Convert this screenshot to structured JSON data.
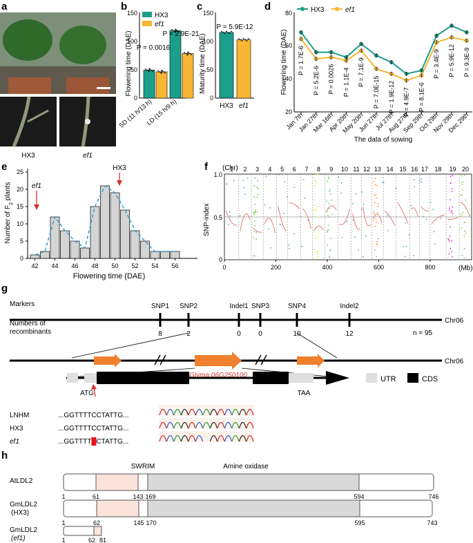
{
  "panel_labels": [
    "a",
    "b",
    "c",
    "d",
    "e",
    "f",
    "g",
    "h"
  ],
  "a": {
    "genotypes": [
      "HX3",
      "ef1"
    ]
  },
  "b": {
    "ylabel": "Flowering time (DAE)",
    "legend": [
      "HX3",
      "ef1"
    ],
    "categories": [
      "SD (11 h/13 h)",
      "LD (15 h/9 h)"
    ],
    "pvalues": [
      "P = 0.0016",
      "P = 2.9E-21"
    ],
    "yticks": [
      "0",
      "50",
      "100",
      "150"
    ]
  },
  "c": {
    "ylabel": "Maturity time (DAE)",
    "categories": [
      "HX3",
      "ef1"
    ],
    "pvalue": "P = 5.9E-12",
    "yticks": [
      "0",
      "50",
      "100",
      "150"
    ]
  },
  "d": {
    "ylabel": "Flowering time (DAE)",
    "xlabel": "The data of sowing",
    "legend": [
      "HX3",
      "ef1"
    ],
    "yticks": [
      "20",
      "40",
      "60",
      "80"
    ],
    "pvalues": [
      "P = 1.7E-6",
      "P = 5.2E-6",
      "P = 0.0026",
      "P = 1.1E-4",
      "P = 7.1E-9",
      "P = 7.0E-15",
      "P = 1.9E-12",
      "P = 4.9E-7",
      "P = 8.1E-6",
      "P = 3.4E-9",
      "P = 5.9E-12",
      "P = 9.3E-9"
    ]
  },
  "e": {
    "ylabel": "Number of F2 plants",
    "ylabel_main": "Number of F",
    "ylabel_sub": "2",
    "ylabel_tail": " plants",
    "xlabel": "Flowering time (DAE)",
    "arrows": [
      "ef1",
      "HX3"
    ],
    "yticks": [
      "0",
      "5",
      "10",
      "15",
      "20",
      "25"
    ],
    "xticks": [
      "42",
      "44",
      "46",
      "48",
      "50",
      "52",
      "54",
      "56"
    ]
  },
  "f": {
    "ylabel": "SNP-index",
    "chr_label": "(Chr)",
    "chromosomes": [
      "1",
      "2",
      "3",
      "4",
      "5",
      "6",
      "7",
      "8",
      "9",
      "10",
      "11",
      "12",
      "13",
      "14",
      "15",
      "16",
      "17",
      "18",
      "19",
      "20"
    ],
    "yticks": [
      "0",
      "0.5",
      "1.0"
    ],
    "xticks": [
      "0",
      "200",
      "400",
      "600",
      "800"
    ],
    "xunit": "(Mb)"
  },
  "g": {
    "markers_label": "Markers",
    "recomb_label_1": "Numbers of",
    "recomb_label_2": "recombinants",
    "markers": [
      "SNP1",
      "SNP2",
      "Indel1",
      "SNP3",
      "SNP4",
      "Indel2"
    ],
    "recombinants": [
      "8",
      "2",
      "0",
      "0",
      "10",
      "12"
    ],
    "chr": "Chr06",
    "n": "n = 95",
    "gene": "Glyma.06G250100",
    "atg": "ATG",
    "taa": "TAA",
    "legend": [
      "UTR",
      "CDS"
    ],
    "lines": [
      "LNHM",
      "HX3",
      "ef1"
    ],
    "seq_a": "...GGTTTTCCTATTG...",
    "seq_b": "...GGTTTTCCTATTG...",
    "seq_c_1": "...GGTTTT",
    "seq_c_2": "CTATTG..."
  },
  "h": {
    "domains": [
      "SWRIM",
      "Amine oxidase"
    ],
    "proteins": [
      {
        "name": "AtLDL2",
        "sub": "",
        "ticks": [
          "1",
          "61",
          "143",
          "169",
          "594",
          "746"
        ]
      },
      {
        "name": "GmLDL2",
        "sub": "(HX3)",
        "ticks": [
          "1",
          "62",
          "145",
          "170",
          "595",
          "743"
        ]
      },
      {
        "name": "GmLDL2",
        "sub": "(ef1)",
        "ticks": [
          "1",
          "62",
          "81"
        ]
      }
    ]
  },
  "chart_data": [
    {
      "type": "bar",
      "panel": "b",
      "categories": [
        "SD (11 h/13 h)",
        "LD (15 h/9 h)"
      ],
      "series": [
        {
          "name": "HX3",
          "values": [
            49,
            118
          ]
        },
        {
          "name": "ef1",
          "values": [
            46,
            78
          ]
        }
      ],
      "ylim": [
        0,
        150
      ],
      "ylabel": "Flowering time (DAE)"
    },
    {
      "type": "bar",
      "panel": "c",
      "categories": [
        "HX3",
        "ef1"
      ],
      "values": [
        115,
        102
      ],
      "ylim": [
        0,
        150
      ],
      "ylabel": "Maturity time (DAE)"
    },
    {
      "type": "line",
      "panel": "d",
      "x": [
        "Jan 7th",
        "Jan 27th",
        "Mar 16th",
        "Apr 20th",
        "May 20th",
        "Jun 27th",
        "Jul 27th",
        "Aug 27th",
        "Sep 29th",
        "Oct 29th",
        "Nov 29th",
        "Dec 29th"
      ],
      "series": [
        {
          "name": "HX3",
          "values": [
            68,
            56,
            56,
            53,
            61,
            54,
            50,
            43,
            45,
            66,
            72,
            68
          ]
        },
        {
          "name": "ef1",
          "values": [
            64,
            52,
            53,
            51,
            57,
            46,
            43,
            39,
            42,
            62,
            65,
            63
          ]
        }
      ],
      "ylim": [
        20,
        80
      ],
      "ylabel": "Flowering time (DAE)",
      "xlabel": "The data of sowing"
    },
    {
      "type": "bar",
      "panel": "e",
      "x": [
        42,
        43,
        44,
        45,
        46,
        47,
        48,
        49,
        50,
        51,
        52,
        53,
        54,
        55,
        56
      ],
      "values": [
        1,
        2,
        12,
        8,
        5,
        3,
        15,
        21,
        19,
        14,
        8,
        5,
        2,
        2,
        2
      ],
      "ylim": [
        0,
        25
      ],
      "ylabel": "Number of F2 plants",
      "xlabel": "Flowering time (DAE)"
    }
  ]
}
